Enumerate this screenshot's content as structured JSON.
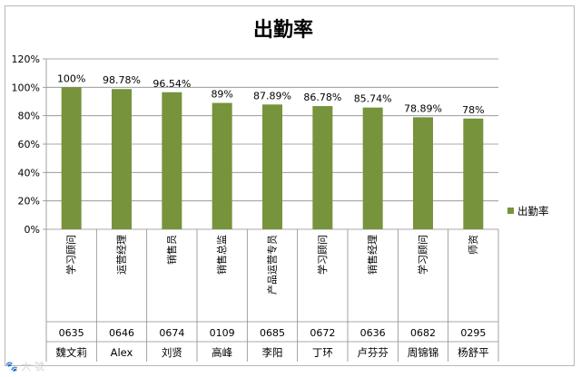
{
  "watermark": "🐾 大 號 ",
  "chart_data": {
    "type": "bar",
    "title": "出勤率",
    "xlabel": "",
    "ylabel": "",
    "ylim": [
      0,
      120
    ],
    "y_tick_step": 20,
    "y_tick_labels": [
      "0%",
      "20%",
      "40%",
      "60%",
      "80%",
      "100%",
      "120%"
    ],
    "grid": true,
    "legend_position": "right",
    "bar_color": "#77933c",
    "categories": [
      {
        "position": "学习顾问",
        "id": "0635",
        "name": "魏文莉"
      },
      {
        "position": "运营经理",
        "id": "0646",
        "name": "Alex"
      },
      {
        "position": "销售员",
        "id": "0674",
        "name": "刘贤"
      },
      {
        "position": "销售总监",
        "id": "0109",
        "name": "高峰"
      },
      {
        "position": "产品运营专员",
        "id": "0685",
        "name": "李阳"
      },
      {
        "position": "学习顾问",
        "id": "0672",
        "name": "丁环"
      },
      {
        "position": "销售经理",
        "id": "0636",
        "name": "卢芬芬"
      },
      {
        "position": "学习顾问",
        "id": "0682",
        "name": "周锦锦"
      },
      {
        "position": "师资",
        "id": "0295",
        "name": "杨舒平"
      }
    ],
    "series": [
      {
        "name": "出勤率",
        "values": [
          100,
          98.78,
          96.54,
          89,
          87.89,
          86.78,
          85.74,
          78.89,
          78
        ],
        "labels": [
          "100%",
          "98.78%",
          "96.54%",
          "89%",
          "87.89%",
          "86.78%",
          "85.74%",
          "78.89%",
          "78%"
        ]
      }
    ]
  }
}
